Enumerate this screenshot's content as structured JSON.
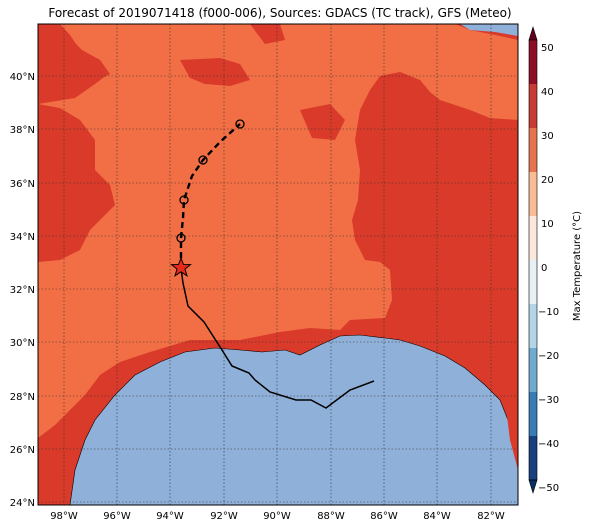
{
  "title": "Forecast of 2019071418 (f000-006), Sources: GDACS (TC track), GFS (Meteo)",
  "lat_ticks": [
    "40°N",
    "38°N",
    "36°N",
    "34°N",
    "32°N",
    "30°N",
    "28°N",
    "26°N",
    "24°N"
  ],
  "lon_ticks": [
    "98°W",
    "96°W",
    "94°W",
    "92°W",
    "90°W",
    "88°W",
    "86°W",
    "84°W",
    "82°W"
  ],
  "colorbar": {
    "label": "Max Temperature (°C)",
    "ticks": [
      "50",
      "40",
      "30",
      "20",
      "10",
      "0",
      "−10",
      "−20",
      "−30",
      "−40",
      "−50"
    ],
    "colors": {
      "c50": "#67001f",
      "c40": "#b2182b",
      "c30": "#d6604d",
      "c20": "#f4a582",
      "c10": "#fddbc7",
      "c0": "#f7f7f7",
      "cm10": "#d1e5f0",
      "cm20": "#92c5de",
      "cm30": "#4393c3",
      "cm40": "#2166ac",
      "cm50": "#053061"
    }
  },
  "map": {
    "ocean_color": "#8fb0d8",
    "hot_color": "#d93a2a",
    "warm_color": "#f26f45",
    "track_color": "#000000",
    "storm_marker": "star-icon"
  }
}
